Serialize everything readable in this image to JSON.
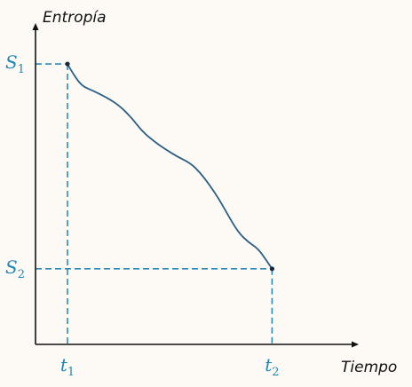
{
  "chart_data": {
    "type": "line",
    "title": "",
    "xlabel": "Tiempo",
    "ylabel": "Entropía",
    "xlim": [
      0,
      10
    ],
    "ylim": [
      0,
      10
    ],
    "grid": false,
    "tick_labels": {
      "x": [
        {
          "base": "t",
          "sub": "1",
          "value": 1
        },
        {
          "base": "t",
          "sub": "2",
          "value": 7.4
        }
      ],
      "y": [
        {
          "base": "S",
          "sub": "1",
          "value": 8.9
        },
        {
          "base": "S",
          "sub": "2",
          "value": 2.4
        }
      ]
    },
    "series": [
      {
        "x": [
          1.0,
          1.2,
          1.45,
          1.8,
          2.2,
          2.6,
          3.0,
          3.35,
          3.7,
          4.05,
          4.45,
          4.85,
          5.15,
          5.45,
          5.75,
          6.05,
          6.35,
          6.65,
          6.95,
          7.2,
          7.4
        ],
        "y": [
          8.9,
          8.55,
          8.2,
          8.05,
          7.85,
          7.6,
          7.2,
          6.75,
          6.45,
          6.2,
          5.95,
          5.75,
          5.45,
          5.05,
          4.6,
          4.05,
          3.55,
          3.25,
          3.05,
          2.7,
          2.4
        ]
      }
    ],
    "colors": {
      "curve": "#2b5f86",
      "guides": "#2b8bbf",
      "axes": "#111111",
      "labels": "#1f86b8"
    }
  }
}
